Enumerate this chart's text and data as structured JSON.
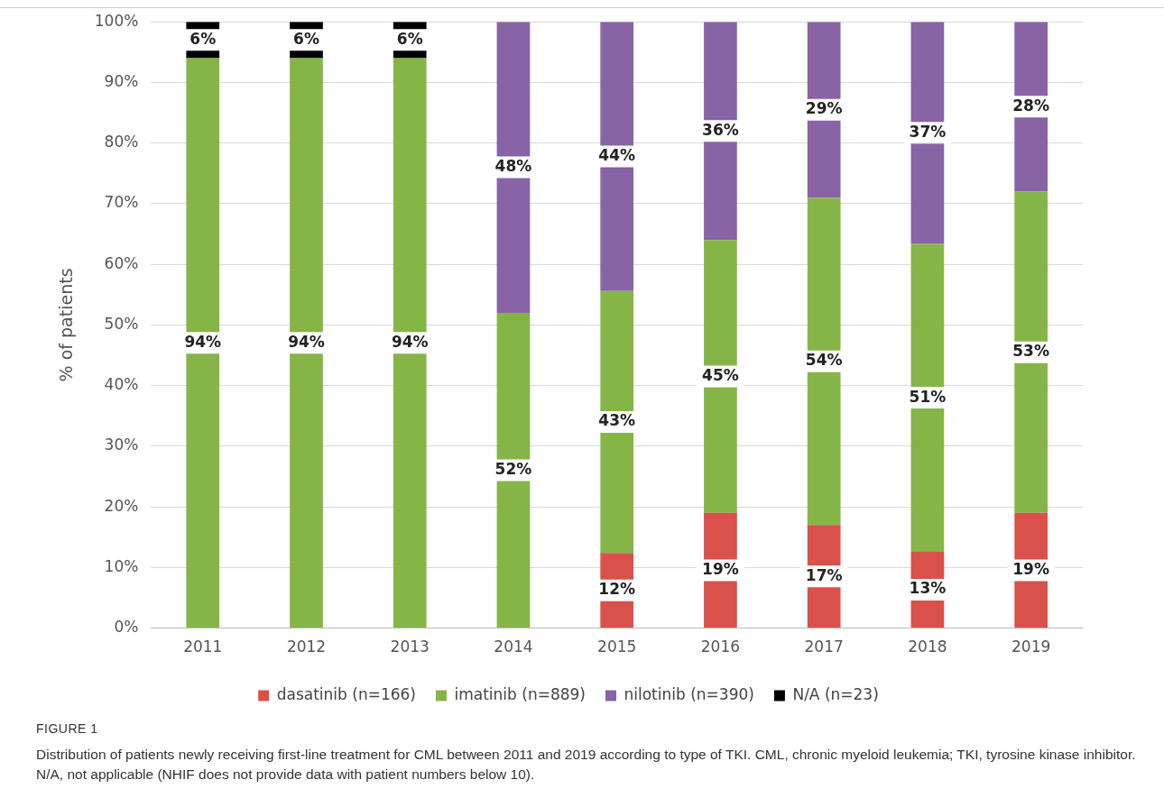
{
  "chart_data": {
    "type": "bar",
    "stacked": true,
    "ylabel": "% of patients",
    "categories": [
      "2011",
      "2012",
      "2013",
      "2014",
      "2015",
      "2016",
      "2017",
      "2018",
      "2019"
    ],
    "series": [
      {
        "name": "dasatinib (n=166)",
        "color": "#d9514a",
        "values": [
          null,
          null,
          null,
          null,
          12.4,
          19,
          17,
          12.6,
          19
        ],
        "value_labels": [
          null,
          null,
          null,
          null,
          "12%",
          "19%",
          "17%",
          "13%",
          "19%"
        ]
      },
      {
        "name": "imatinib (n=889)",
        "color": "#86b547",
        "values": [
          94,
          94,
          94,
          52,
          43.2,
          45,
          54,
          50.8,
          53
        ],
        "value_labels": [
          "94%",
          "94%",
          "94%",
          "52%",
          "43%",
          "45%",
          "54%",
          "51%",
          "53%"
        ]
      },
      {
        "name": "nilotinib (n=390)",
        "color": "#8864a6",
        "values": [
          null,
          null,
          null,
          48,
          44.4,
          36,
          29,
          36.6,
          28
        ],
        "value_labels": [
          null,
          null,
          null,
          "48%",
          "44%",
          "36%",
          "29%",
          "37%",
          "28%"
        ]
      },
      {
        "name": "N/A (n=23)",
        "color": "#000000",
        "values": [
          6,
          6,
          6,
          null,
          null,
          null,
          null,
          null,
          null
        ],
        "value_labels": [
          "6%",
          "6%",
          "6%",
          null,
          null,
          null,
          null,
          null,
          null
        ]
      }
    ],
    "ylim": [
      0,
      100
    ],
    "yticks": [
      {
        "value": 0,
        "label": "0%"
      },
      {
        "value": 10,
        "label": "10%"
      },
      {
        "value": 20,
        "label": "20%"
      },
      {
        "value": 30,
        "label": "30%"
      },
      {
        "value": 40,
        "label": "40%"
      },
      {
        "value": 50,
        "label": "50%"
      },
      {
        "value": 60,
        "label": "60%"
      },
      {
        "value": 70,
        "label": "70%"
      },
      {
        "value": 80,
        "label": "80%"
      },
      {
        "value": 90,
        "label": "90%"
      },
      {
        "value": 100,
        "label": "100%"
      }
    ],
    "grid": "y",
    "legend": "bottom",
    "annotations": [
      "FIGURE 1",
      "Distribution of patients newly receiving first-line treatment for CML between 2011 and 2019 according to type of TKI. CML, chronic myeloid leukemia; TKI, tyrosine kinase inhibitor. N/A, not applicable (NHIF does not provide data with patient numbers below 10)."
    ]
  }
}
